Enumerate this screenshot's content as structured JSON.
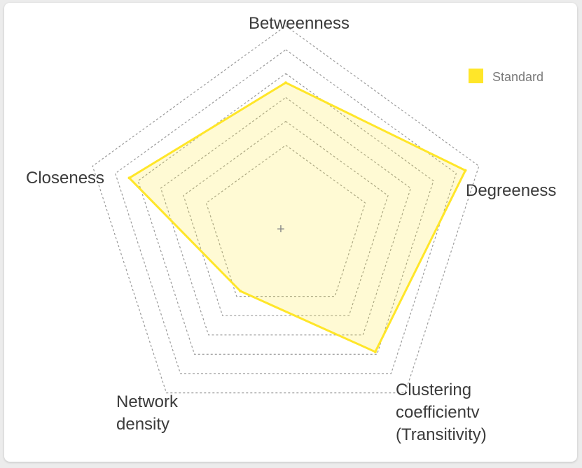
{
  "chart_data": {
    "type": "radar",
    "axes": [
      "Betweenness",
      "Degreeness",
      "Clustering coefficientv (Transitivity)",
      "Network density",
      "Closeness"
    ],
    "axis_label_lines": [
      [
        "Betweenness"
      ],
      [
        "Degreeness"
      ],
      [
        "Clustering",
        "coefficientv",
        "(Transitivity)"
      ],
      [
        "Network",
        "density"
      ],
      [
        "Closeness"
      ]
    ],
    "series": [
      {
        "name": "Standard",
        "values": [
          0.72,
          0.93,
          0.75,
          0.38,
          0.81
        ],
        "color": "#ffe629"
      }
    ],
    "range": [
      0,
      1
    ],
    "grid_levels": 6,
    "legend_position": "top-right"
  },
  "legend": {
    "label": "Standard",
    "color": "#ffe629"
  },
  "center_marker": "+"
}
